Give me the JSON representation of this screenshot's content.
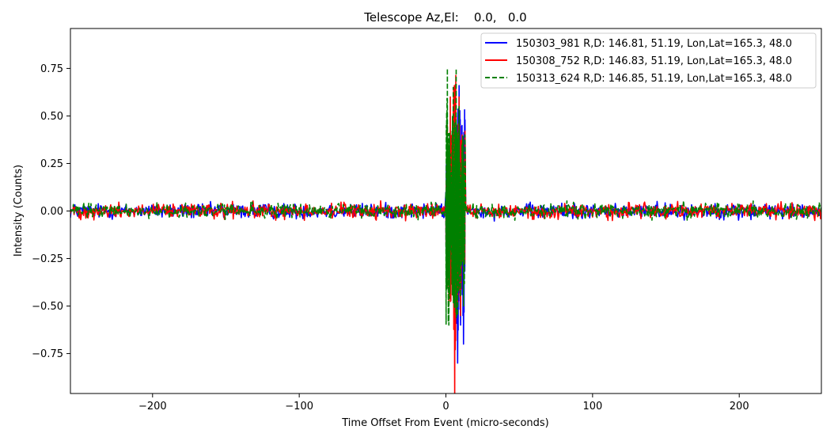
{
  "chart_data": {
    "type": "line",
    "title": "Telescope Az,El:    0.0,   0.0",
    "xlabel": "Time Offset From Event (micro-seconds)",
    "ylabel": "Intensity (Counts)",
    "xlim": [
      -256,
      256
    ],
    "ylim": [
      -0.96,
      0.96
    ],
    "xticks": [
      -200,
      -100,
      0,
      100,
      200
    ],
    "xtick_labels": [
      "−200",
      "−100",
      "0",
      "100",
      "200"
    ],
    "yticks": [
      0.75,
      0.5,
      0.25,
      0.0,
      -0.25,
      -0.5,
      -0.75
    ],
    "ytick_labels": [
      "0.75",
      "0.50",
      "0.25",
      "0.00",
      "−0.25",
      "−0.50",
      "−0.75"
    ],
    "grid": false,
    "legend_position": "top-right",
    "series": [
      {
        "name": "150303_981 R,D: 146.81, 51.19, Lon,Lat=165.3, 48.0",
        "color": "#0000ff",
        "style": "solid",
        "noise_amplitude": 0.035,
        "burst_x": [
          0,
          1,
          2,
          3,
          4,
          5,
          6,
          7,
          8,
          9,
          10,
          11,
          12,
          13
        ],
        "burst_y": [
          0.1,
          0.4,
          -0.4,
          0.35,
          -0.3,
          0.3,
          -0.5,
          0.5,
          -0.8,
          0.66,
          -0.6,
          0.45,
          -0.7,
          0.48
        ]
      },
      {
        "name": "150308_752 R,D: 146.83, 51.19, Lon,Lat=165.3, 48.0",
        "color": "#ff0000",
        "style": "solid",
        "noise_amplitude": 0.035,
        "burst_x": [
          0,
          1,
          2,
          3,
          4,
          5,
          6,
          7,
          8,
          9,
          10,
          11,
          12,
          13
        ],
        "burst_y": [
          0.05,
          0.45,
          -0.5,
          0.6,
          -0.35,
          0.55,
          -0.98,
          0.45,
          -0.5,
          0.6,
          -0.55,
          0.4,
          -0.3,
          0.42
        ]
      },
      {
        "name": "150313_624 R,D: 146.85, 51.19, Lon,Lat=165.3, 48.0",
        "color": "#008000",
        "style": "dashed",
        "noise_amplitude": 0.035,
        "burst_x": [
          0,
          1,
          2,
          3,
          4,
          5,
          6,
          7,
          8,
          9,
          10,
          11,
          12,
          13
        ],
        "burst_y": [
          0.1,
          0.75,
          -0.6,
          0.3,
          -0.25,
          0.65,
          -0.4,
          0.75,
          -0.55,
          0.55,
          -0.45,
          0.35,
          -0.5,
          0.4
        ]
      }
    ]
  }
}
